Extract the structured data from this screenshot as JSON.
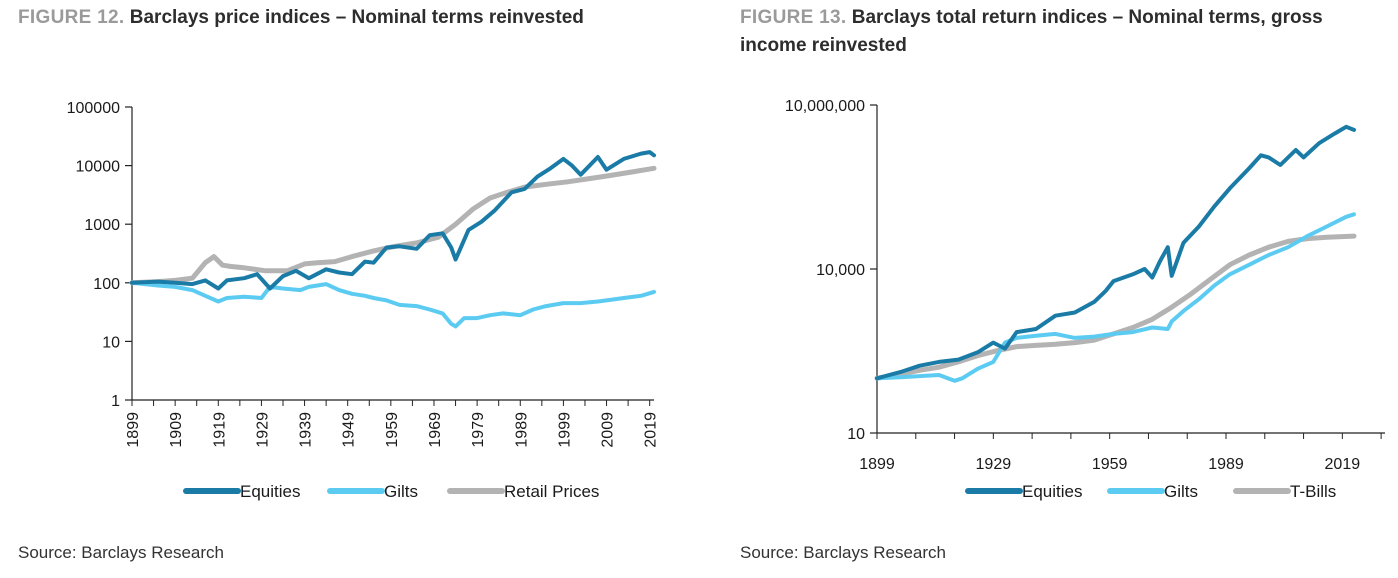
{
  "colors": {
    "equities": "#1a7ba7",
    "gilts": "#5ccbf2",
    "secondary": "#b3b3b3"
  },
  "charts": [
    {
      "figure_label": "FIGURE 12.",
      "title": "Barclays price indices – Nominal terms reinvested",
      "source": "Source: Barclays Research",
      "chart_data": {
        "type": "line",
        "yscale": "log",
        "ylim": [
          1,
          100000
        ],
        "xlim": [
          1899,
          2020
        ],
        "yticks": [
          1,
          10,
          100,
          1000,
          10000,
          100000
        ],
        "ytick_labels": [
          "1",
          "10",
          "100",
          "1000",
          "10000",
          "100000"
        ],
        "xticks": [
          1899,
          1909,
          1919,
          1929,
          1939,
          1949,
          1959,
          1969,
          1979,
          1989,
          1999,
          2009,
          2019
        ],
        "xtick_labels": [
          "1899",
          "1909",
          "1919",
          "1929",
          "1939",
          "1949",
          "1959",
          "1969",
          "1979",
          "1989",
          "1999",
          "2009",
          "2019"
        ],
        "legend": "bottom",
        "series": [
          {
            "name": "Equities",
            "color_key": "equities",
            "x": [
              1899,
              1905,
              1909,
              1913,
              1916,
              1919,
              1921,
              1925,
              1928,
              1931,
              1934,
              1937,
              1940,
              1944,
              1947,
              1950,
              1953,
              1955,
              1958,
              1961,
              1965,
              1968,
              1971,
              1973,
              1974,
              1977,
              1980,
              1983,
              1987,
              1990,
              1993,
              1996,
              1999,
              2001,
              2003,
              2007,
              2009,
              2013,
              2017,
              2019,
              2020
            ],
            "y": [
              100,
              105,
              100,
              95,
              110,
              80,
              110,
              120,
              140,
              80,
              130,
              160,
              120,
              170,
              150,
              140,
              230,
              220,
              400,
              420,
              380,
              650,
              700,
              400,
              250,
              800,
              1100,
              1700,
              3500,
              4000,
              6500,
              9000,
              13000,
              10000,
              7000,
              14000,
              8500,
              13000,
              16000,
              17000,
              15000
            ]
          },
          {
            "name": "Gilts",
            "color_key": "gilts",
            "x": [
              1899,
              1905,
              1909,
              1913,
              1916,
              1919,
              1921,
              1925,
              1929,
              1931,
              1934,
              1938,
              1940,
              1944,
              1947,
              1950,
              1953,
              1955,
              1958,
              1961,
              1965,
              1968,
              1971,
              1973,
              1974,
              1976,
              1979,
              1982,
              1985,
              1989,
              1992,
              1995,
              1999,
              2003,
              2007,
              2009,
              2013,
              2017,
              2020
            ],
            "y": [
              100,
              90,
              85,
              75,
              60,
              48,
              55,
              58,
              55,
              85,
              80,
              75,
              85,
              95,
              75,
              65,
              60,
              55,
              50,
              42,
              40,
              35,
              30,
              20,
              18,
              25,
              25,
              28,
              30,
              28,
              35,
              40,
              45,
              45,
              48,
              50,
              55,
              60,
              70
            ]
          },
          {
            "name": "Retail Prices",
            "color_key": "secondary",
            "x": [
              1899,
              1905,
              1909,
              1913,
              1916,
              1918,
              1920,
              1922,
              1925,
              1930,
              1935,
              1939,
              1942,
              1946,
              1950,
              1955,
              1960,
              1965,
              1970,
              1974,
              1978,
              1982,
              1986,
              1990,
              1995,
              2000,
              2005,
              2010,
              2015,
              2020
            ],
            "y": [
              100,
              105,
              110,
              120,
              220,
              280,
              200,
              190,
              180,
              160,
              160,
              210,
              220,
              230,
              280,
              350,
              420,
              480,
              600,
              1000,
              1800,
              2800,
              3500,
              4300,
              4800,
              5300,
              6000,
              6800,
              7800,
              9000
            ]
          }
        ]
      }
    },
    {
      "figure_label": "FIGURE 13.",
      "title": "Barclays total return indices – Nominal terms, gross income reinvested",
      "source": "Source: Barclays Research",
      "chart_data": {
        "type": "line",
        "yscale": "log",
        "ylim": [
          10,
          10000000
        ],
        "xlim": [
          1899,
          2030
        ],
        "yticks": [
          10,
          10000,
          10000000
        ],
        "ytick_labels": [
          "10",
          "10,000",
          "10,000,000"
        ],
        "xticks": [
          1899,
          1929,
          1959,
          1989,
          2019
        ],
        "xtick_labels": [
          "1899",
          "1929",
          "1959",
          "1989",
          "2019"
        ],
        "legend": "bottom",
        "series": [
          {
            "name": "Equities",
            "color_key": "equities",
            "x": [
              1899,
              1905,
              1910,
              1915,
              1920,
              1925,
              1929,
              1932,
              1935,
              1940,
              1945,
              1950,
              1955,
              1958,
              1960,
              1965,
              1968,
              1970,
              1972,
              1974,
              1975,
              1978,
              1982,
              1986,
              1990,
              1995,
              1998,
              2000,
              2003,
              2007,
              2009,
              2013,
              2017,
              2020,
              2022
            ],
            "y": [
              100,
              130,
              170,
              200,
              220,
              300,
              450,
              350,
              700,
              800,
              1400,
              1600,
              2500,
              4000,
              6000,
              8000,
              10000,
              7000,
              14000,
              25000,
              7500,
              30000,
              60000,
              140000,
              300000,
              700000,
              1200000,
              1100000,
              800000,
              1500000,
              1100000,
              2000000,
              3000000,
              4000000,
              3500000
            ]
          },
          {
            "name": "Gilts",
            "color_key": "gilts",
            "x": [
              1899,
              1905,
              1910,
              1915,
              1919,
              1921,
              1925,
              1929,
              1932,
              1935,
              1940,
              1945,
              1950,
              1955,
              1960,
              1965,
              1970,
              1974,
              1975,
              1978,
              1982,
              1986,
              1990,
              1995,
              2000,
              2005,
              2010,
              2015,
              2020,
              2022
            ],
            "y": [
              100,
              105,
              110,
              115,
              90,
              100,
              150,
              200,
              450,
              550,
              600,
              650,
              550,
              580,
              650,
              700,
              850,
              800,
              1100,
              1700,
              2800,
              5000,
              8000,
              12000,
              18000,
              25000,
              40000,
              60000,
              90000,
              100000
            ]
          },
          {
            "name": "T-Bills",
            "color_key": "secondary",
            "x": [
              1899,
              1905,
              1910,
              1915,
              1920,
              1925,
              1930,
              1935,
              1940,
              1945,
              1950,
              1955,
              1960,
              1965,
              1970,
              1975,
              1980,
              1985,
              1990,
              1995,
              2000,
              2005,
              2010,
              2015,
              2022
            ],
            "y": [
              100,
              120,
              140,
              160,
              200,
              260,
              320,
              380,
              400,
              420,
              450,
              500,
              650,
              850,
              1200,
              2000,
              3500,
              6500,
              12000,
              18000,
              25000,
              32000,
              36000,
              38000,
              40000
            ]
          }
        ]
      }
    }
  ]
}
